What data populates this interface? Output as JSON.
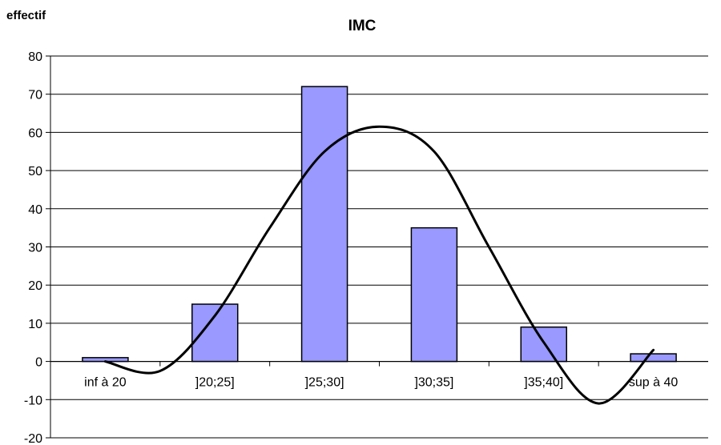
{
  "chart_data": {
    "type": "bar",
    "title": "IMC",
    "ylabel": "effectif",
    "xlabel": "",
    "categories": [
      "inf à 20",
      "]20;25]",
      "]25;30]",
      "]30;35]",
      "]35;40]",
      "sup à 40"
    ],
    "values": [
      1,
      15,
      72,
      35,
      9,
      2
    ],
    "ylim": [
      -20,
      80
    ],
    "yticks": [
      "80",
      "70",
      "60",
      "50",
      "40",
      "30",
      "20",
      "10",
      "0",
      "-10",
      "-20"
    ],
    "grid": true,
    "legend": "none",
    "bar_color": "#9999ff",
    "trend_line": {
      "type": "polynomial smoothed curve",
      "color": "#000000",
      "x": [
        0,
        0.5,
        1,
        1.5,
        2,
        2.5,
        3,
        3.5,
        4,
        4.5,
        5
      ],
      "y": [
        0,
        -2.5,
        12,
        35,
        55,
        61.5,
        55,
        30,
        5,
        -11,
        3
      ]
    }
  }
}
